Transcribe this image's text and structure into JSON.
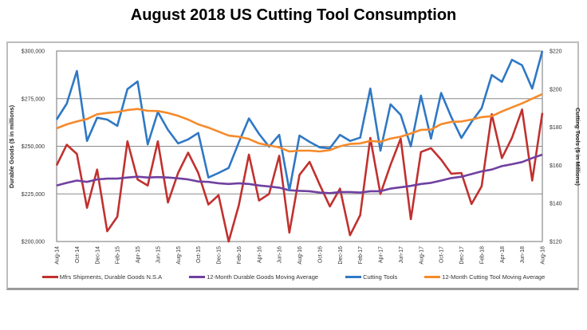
{
  "title": "August 2018 US Cutting Tool Consumption",
  "chart_data": {
    "type": "line",
    "title": "August 2018 US Cutting Tool Consumption",
    "categories": [
      "Aug-14",
      "Sep-14",
      "Oct-14",
      "Nov-14",
      "Dec-14",
      "Jan-15",
      "Feb-15",
      "Mar-15",
      "Apr-15",
      "May-15",
      "Jun-15",
      "Jul-15",
      "Aug-15",
      "Sep-15",
      "Oct-15",
      "Nov-15",
      "Dec-15",
      "Jan-16",
      "Feb-16",
      "Mar-16",
      "Apr-16",
      "May-16",
      "Jun-16",
      "Jul-16",
      "Aug-16",
      "Sep-16",
      "Oct-16",
      "Nov-16",
      "Dec-16",
      "Jan-17",
      "Feb-17",
      "Mar-17",
      "Apr-17",
      "May-17",
      "Jun-17",
      "Jul-17",
      "Aug-17",
      "Sep-17",
      "Oct-17",
      "Nov-17",
      "Dec-17",
      "Jan-18",
      "Feb-18",
      "Mar-18",
      "Apr-18",
      "May-18",
      "Jun-18",
      "Jul-18",
      "Aug-18"
    ],
    "xtick_labels": [
      "Aug-14",
      "Oct-14",
      "Dec-14",
      "Feb-15",
      "Apr-15",
      "Jun-15",
      "Aug-15",
      "Oct-15",
      "Dec-15",
      "Feb-16",
      "Apr-16",
      "Jun-16",
      "Aug-16",
      "Oct-16",
      "Dec-16",
      "Feb-17",
      "Apr-17",
      "Jun-17",
      "Aug-17",
      "Oct-17",
      "Dec-17",
      "Feb-18",
      "Apr-18",
      "Jun-18",
      "Aug-18"
    ],
    "y_left": {
      "label": "Durable Goods ($ in millions)",
      "range": [
        200000,
        300000
      ],
      "ticks": [
        "$200,000",
        "$225,000",
        "$250,000",
        "$275,000",
        "$300,000"
      ],
      "tick_values": [
        200000,
        225000,
        250000,
        275000,
        300000
      ]
    },
    "y_right": {
      "label": "Cutting Tools ($ in Millions)",
      "range": [
        120,
        220
      ],
      "ticks": [
        "$120",
        "$140",
        "$160",
        "$180",
        "$200",
        "$220"
      ],
      "tick_values": [
        120,
        140,
        160,
        180,
        200,
        220
      ]
    },
    "grid": true,
    "legend_position": "bottom",
    "series": [
      {
        "name": "Mfrs Shipments, Durable Goods N.S.A",
        "axis": "left",
        "color": "#c0312f",
        "values": [
          240000,
          250800,
          246000,
          217700,
          237800,
          205400,
          213000,
          252600,
          232600,
          229400,
          252600,
          220500,
          236000,
          246600,
          236000,
          219400,
          224300,
          200000,
          219000,
          245600,
          221500,
          225000,
          245000,
          204700,
          235000,
          241800,
          229800,
          218400,
          227800,
          203300,
          213800,
          254400,
          225000,
          240300,
          254000,
          211700,
          247000,
          249000,
          243000,
          235600,
          236000,
          219700,
          229000,
          266800,
          243800,
          254400,
          269300,
          232000,
          267500
        ]
      },
      {
        "name": "12-Month Durable Goods Moving Average",
        "axis": "left",
        "color": "#7040a0",
        "values": [
          229400,
          230800,
          232000,
          231300,
          232600,
          233000,
          233000,
          233600,
          234000,
          233600,
          233800,
          233600,
          233200,
          232600,
          231500,
          231300,
          230600,
          230200,
          230600,
          230200,
          229400,
          228900,
          228300,
          226900,
          226600,
          226400,
          225700,
          225400,
          226000,
          226000,
          225700,
          226400,
          226400,
          227800,
          228500,
          229200,
          230200,
          230800,
          232000,
          233300,
          234000,
          235400,
          236800,
          237800,
          239600,
          240600,
          241700,
          243800,
          245600
        ]
      },
      {
        "name": "Cutting Tools",
        "axis": "right",
        "color": "#2f78c4",
        "values": [
          184,
          192.4,
          209.5,
          172.8,
          185,
          184,
          180.7,
          200,
          204,
          171,
          188,
          178.6,
          171.5,
          173.6,
          177,
          153.6,
          156,
          158.6,
          172,
          184.6,
          176.5,
          169.8,
          176,
          146.8,
          175.6,
          172.3,
          169.4,
          169,
          176,
          172.8,
          174.5,
          200.3,
          167.7,
          192,
          186.5,
          170,
          196.6,
          174,
          198,
          185.4,
          174.4,
          182.8,
          190,
          207.4,
          203.8,
          215.4,
          212.5,
          200.3,
          220
        ]
      },
      {
        "name": "12-Month Cutting Tool Moving Average",
        "axis": "right",
        "color": "#f58a2a",
        "values": [
          179.4,
          181.5,
          183,
          184.3,
          186.8,
          187.5,
          188,
          189,
          189.6,
          188.6,
          188.5,
          187.5,
          186,
          184,
          181.5,
          179.8,
          177.7,
          175.6,
          175,
          173.8,
          171.5,
          170.4,
          169.4,
          167.3,
          167.7,
          167.7,
          167.3,
          168,
          170,
          171.2,
          171.5,
          172.8,
          172.4,
          174,
          175,
          176.7,
          178.6,
          178.8,
          181.6,
          182.8,
          183,
          184,
          185.3,
          185.8,
          188.3,
          190.4,
          192.5,
          195,
          197.4
        ]
      }
    ]
  }
}
